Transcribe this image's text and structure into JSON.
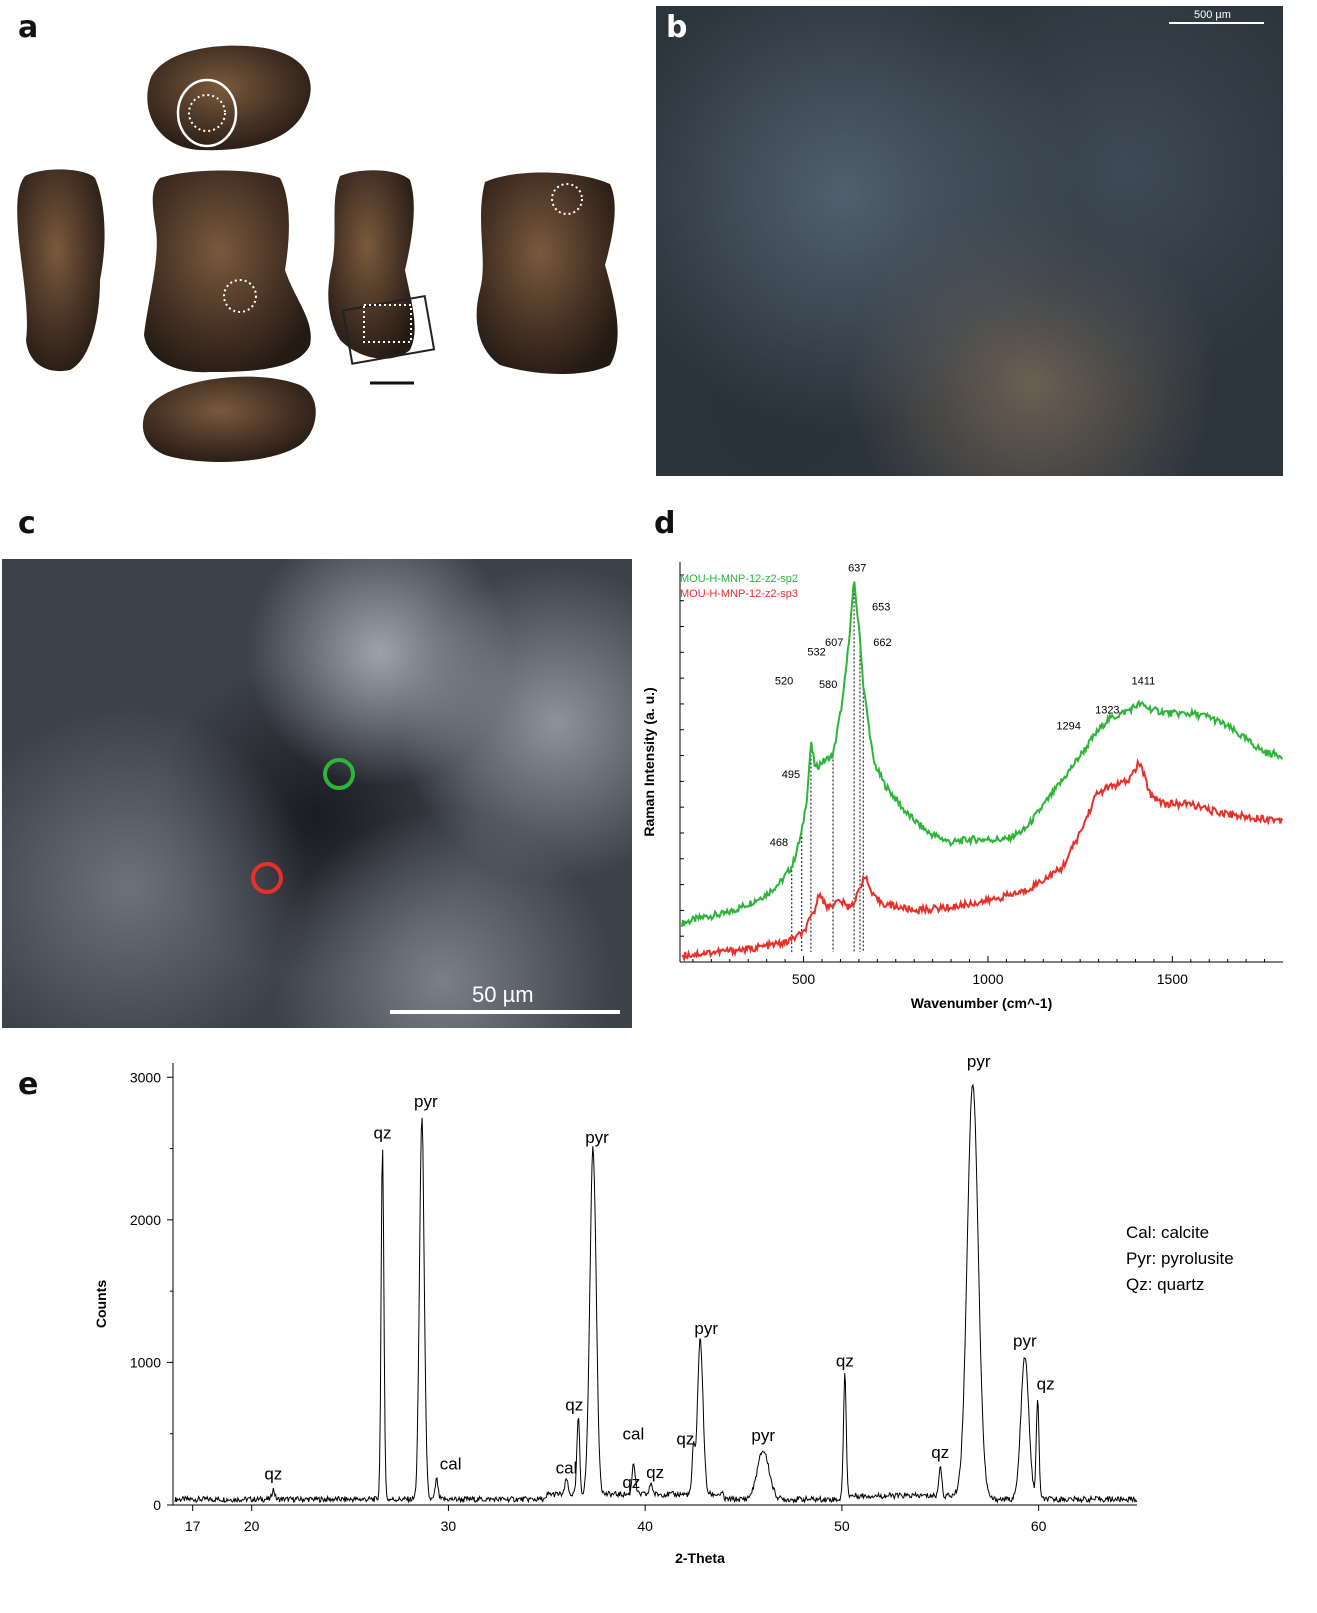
{
  "panels": {
    "a": "a",
    "b": "b",
    "c": "c",
    "d": "d",
    "e": "e"
  },
  "panel_b": {
    "scale_label": "500 µm"
  },
  "panel_c": {
    "scale_label": "50 µm"
  },
  "colors": {
    "sp2": "#2db53a",
    "sp3": "#e8302b",
    "axis": "#000000",
    "text": "#000000"
  },
  "chart_data": [
    {
      "type": "line",
      "panel": "d",
      "xlabel": "Wavenumber (cm^-1)",
      "ylabel": "Raman Intensity (a. u.)",
      "xlim": [
        165,
        1800
      ],
      "x_ticks": [
        500,
        1000,
        1500
      ],
      "legend_position": "top-left",
      "series": [
        {
          "name": "MOU-H-MNP-12-z2-sp2",
          "color": "#2db53a",
          "x": [
            170,
            230,
            290,
            350,
            400,
            440,
            470,
            495,
            510,
            520,
            532,
            550,
            580,
            607,
            620,
            637,
            653,
            662,
            690,
            720,
            780,
            840,
            900,
            950,
            1000,
            1050,
            1100,
            1200,
            1250,
            1294,
            1323,
            1380,
            1411,
            1450,
            1500,
            1550,
            1600,
            1650,
            1700,
            1750,
            1800
          ],
          "y": [
            12,
            14,
            15,
            18,
            21,
            25,
            30,
            40,
            52,
            68,
            60,
            62,
            64,
            82,
            96,
            118,
            100,
            86,
            62,
            55,
            46,
            40,
            37,
            38,
            38,
            38,
            41,
            56,
            64,
            71,
            75,
            78,
            80,
            78,
            77,
            77,
            76,
            73,
            69,
            65,
            64
          ]
        },
        {
          "name": "MOU-H-MNP-12-z2-sp3",
          "color": "#e8302b",
          "x": [
            170,
            250,
            350,
            450,
            500,
            530,
            545,
            560,
            580,
            600,
            620,
            640,
            665,
            690,
            720,
            800,
            900,
            1000,
            1100,
            1200,
            1250,
            1294,
            1323,
            1380,
            1411,
            1440,
            1480,
            1550,
            1600,
            1700,
            1800
          ],
          "y": [
            2,
            3,
            4,
            6,
            9,
            16,
            22,
            17,
            18,
            19,
            17,
            19,
            27,
            20,
            18,
            16,
            17,
            19,
            22,
            29,
            40,
            52,
            54,
            56,
            62,
            52,
            49,
            49,
            47,
            45,
            44
          ]
        }
      ],
      "annotations": [
        "468",
        "495",
        "520",
        "532",
        "580",
        "607",
        "637",
        "653",
        "662",
        "1294",
        "1323",
        "1411"
      ],
      "marker_lines": [
        468,
        495,
        520,
        580,
        637,
        653,
        662
      ]
    },
    {
      "type": "line",
      "panel": "e",
      "xlabel": "2-Theta",
      "ylabel": "Counts",
      "xlim": [
        16,
        65
      ],
      "ylim": [
        0,
        3100
      ],
      "x_ticks": [
        17,
        20,
        30,
        40,
        50,
        60
      ],
      "y_ticks": [
        0,
        1000,
        2000,
        3000
      ],
      "peaks": [
        {
          "x": 21.1,
          "y": 110,
          "label": "qz"
        },
        {
          "x": 26.65,
          "y": 2500,
          "label": "qz"
        },
        {
          "x": 28.65,
          "y": 2720,
          "label": "pyr"
        },
        {
          "x": 29.4,
          "y": 180,
          "label": "cal"
        },
        {
          "x": 36.0,
          "y": 150,
          "label": "cal"
        },
        {
          "x": 36.6,
          "y": 580,
          "label": "qz"
        },
        {
          "x": 37.35,
          "y": 2470,
          "label": "pyr"
        },
        {
          "x": 39.4,
          "y": 250,
          "label": "cal"
        },
        {
          "x": 39.5,
          "y": 90,
          "label": "qz"
        },
        {
          "x": 40.3,
          "y": 120,
          "label": "qz"
        },
        {
          "x": 42.45,
          "y": 340,
          "label": "qz"
        },
        {
          "x": 42.8,
          "y": 1130,
          "label": "pyr"
        },
        {
          "x": 46.0,
          "y": 380,
          "label": "pyr"
        },
        {
          "x": 50.15,
          "y": 900,
          "label": "qz"
        },
        {
          "x": 55.0,
          "y": 260,
          "label": "qz"
        },
        {
          "x": 56.65,
          "y": 2960,
          "label": "pyr"
        },
        {
          "x": 59.3,
          "y": 1040,
          "label": "pyr"
        },
        {
          "x": 59.95,
          "y": 740,
          "label": "qz"
        }
      ],
      "legend_lines": [
        "Cal: calcite",
        "Pyr: pyrolusite",
        "Qz: quartz"
      ]
    }
  ]
}
